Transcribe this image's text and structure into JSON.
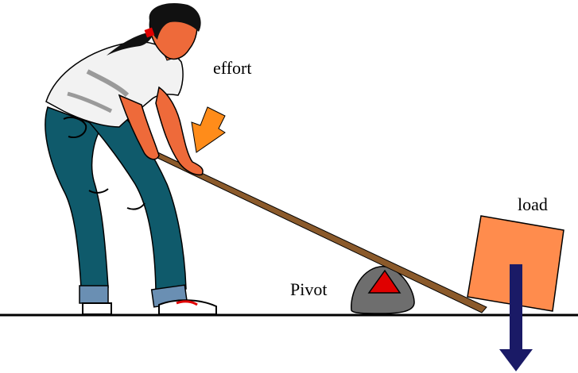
{
  "labels": {
    "effort": "effort",
    "load": "load",
    "pivot": "Pivot"
  },
  "colors": {
    "background": "#ffffff",
    "ground": "#000000",
    "lever": "#8b5a2b",
    "effort_arrow": "#ff8c1a",
    "load_box": "#ff8c4d",
    "load_arrow": "#1a1a66",
    "pivot_rock": "#6e6e6e",
    "pivot_triangle": "#e00000",
    "jeans": "#0f5a6b",
    "shirt": "#f2f2f2",
    "skin": "#ee6a3a",
    "hair": "#111111"
  },
  "icons": {
    "figure": "person-pushing-lever-icon",
    "effort": "down-arrow-icon",
    "load": "down-arrow-icon",
    "pivot": "triangle-fulcrum-icon"
  }
}
